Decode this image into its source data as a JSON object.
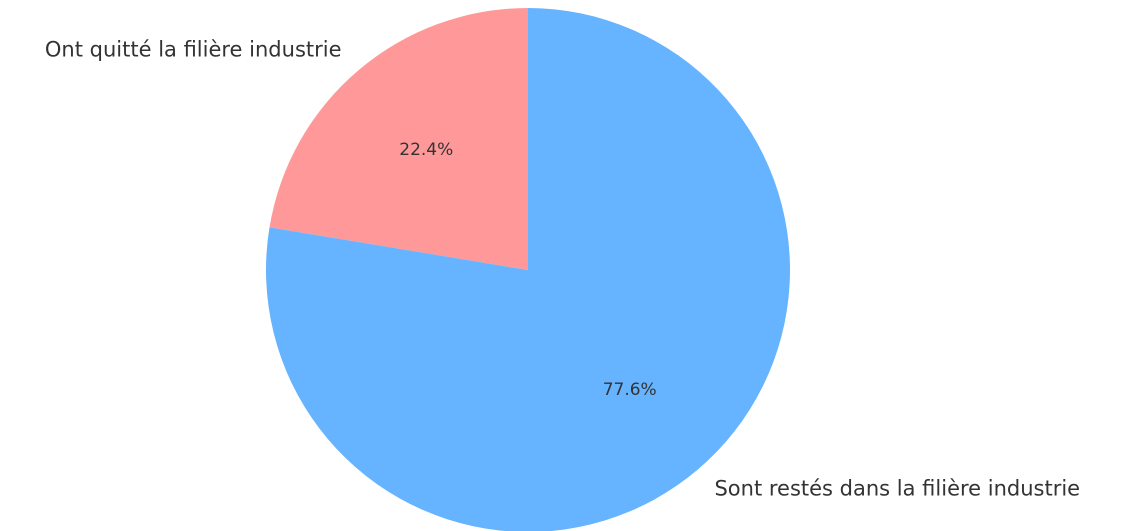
{
  "chart_data": {
    "type": "pie",
    "categories": [
      "Ont quitté la filière industrie",
      "Sont restés dans la filière industrie"
    ],
    "values": [
      22.4,
      77.6
    ],
    "value_labels": [
      "22.4%",
      "77.6%"
    ],
    "colors": [
      "#ff9999",
      "#66b3ff"
    ]
  }
}
